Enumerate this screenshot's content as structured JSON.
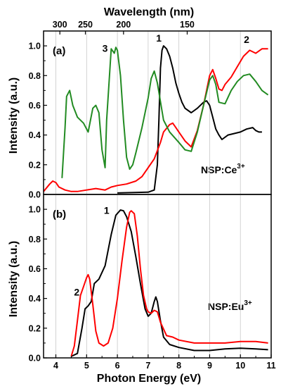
{
  "chart_data": [
    {
      "type": "line",
      "panel_label": "(a)",
      "annotation": "NSP:Ce",
      "annotation_sup": "3+",
      "top_axis": {
        "label": "Wavelength (nm)",
        "ticks": [
          {
            "label": "300",
            "energy": 4.13
          },
          {
            "label": "250",
            "energy": 4.96
          },
          {
            "label": "200",
            "energy": 6.2
          },
          {
            "label": "150",
            "energy": 8.27
          }
        ]
      },
      "ylabel": "Intensity (a.u.)",
      "ylim": [
        0,
        1.1
      ],
      "yticks": [
        "0.0",
        "0.2",
        "0.4",
        "0.6",
        "0.8",
        "1.0"
      ],
      "xlim": [
        3.6,
        11
      ],
      "grid_x": [
        4,
        5,
        6,
        7,
        8,
        9,
        10,
        11
      ],
      "series": [
        {
          "name": "1",
          "color": "#000000",
          "label_pos": [
            7.35,
            1.03
          ],
          "x": [
            6.0,
            7.0,
            7.2,
            7.3,
            7.35,
            7.4,
            7.45,
            7.5,
            7.6,
            7.7,
            7.8,
            7.9,
            8.0,
            8.1,
            8.2,
            8.4,
            8.6,
            8.8,
            8.9,
            9.0,
            9.1,
            9.2,
            9.3,
            9.4,
            9.6,
            9.8,
            10.0,
            10.2,
            10.4,
            10.5,
            10.6,
            10.7
          ],
          "y": [
            0.01,
            0.015,
            0.03,
            0.2,
            0.5,
            0.85,
            0.97,
            1.0,
            0.98,
            0.93,
            0.85,
            0.75,
            0.68,
            0.62,
            0.58,
            0.55,
            0.58,
            0.62,
            0.63,
            0.6,
            0.52,
            0.44,
            0.4,
            0.37,
            0.4,
            0.41,
            0.42,
            0.44,
            0.45,
            0.43,
            0.42,
            0.42
          ]
        },
        {
          "name": "2",
          "color": "#ff0000",
          "label_pos": [
            10.2,
            1.02
          ],
          "x": [
            3.6,
            3.8,
            3.9,
            4.0,
            4.1,
            4.3,
            4.5,
            4.7,
            5.0,
            5.3,
            5.6,
            5.8,
            6.0,
            6.3,
            6.6,
            6.8,
            7.0,
            7.2,
            7.4,
            7.5,
            7.7,
            7.8,
            7.9,
            8.0,
            8.2,
            8.4,
            8.6,
            8.8,
            9.0,
            9.1,
            9.2,
            9.3,
            9.4,
            9.5,
            9.7,
            9.9,
            10.1,
            10.3,
            10.5,
            10.7,
            10.9
          ],
          "y": [
            0.02,
            0.07,
            0.09,
            0.08,
            0.05,
            0.03,
            0.02,
            0.02,
            0.03,
            0.04,
            0.03,
            0.05,
            0.06,
            0.07,
            0.09,
            0.12,
            0.18,
            0.24,
            0.35,
            0.42,
            0.47,
            0.48,
            0.45,
            0.42,
            0.36,
            0.32,
            0.43,
            0.6,
            0.8,
            0.84,
            0.78,
            0.71,
            0.7,
            0.74,
            0.79,
            0.86,
            0.93,
            0.97,
            0.95,
            0.98,
            0.98
          ]
        },
        {
          "name": "3",
          "color": "#228b22",
          "label_pos": [
            5.6,
            0.96
          ],
          "x": [
            4.2,
            4.3,
            4.35,
            4.45,
            4.55,
            4.7,
            4.9,
            5.05,
            5.2,
            5.3,
            5.4,
            5.5,
            5.6,
            5.65,
            5.8,
            5.9,
            5.95,
            6.0,
            6.1,
            6.2,
            6.3,
            6.4,
            6.5,
            6.6,
            6.8,
            7.0,
            7.1,
            7.2,
            7.3,
            7.5,
            7.7,
            8.0,
            8.2,
            8.4,
            8.6,
            8.8,
            9.0,
            9.1,
            9.2,
            9.3,
            9.5,
            9.7,
            9.9,
            10.1,
            10.3,
            10.5,
            10.7,
            10.9
          ],
          "y": [
            0.11,
            0.45,
            0.66,
            0.7,
            0.6,
            0.52,
            0.48,
            0.42,
            0.58,
            0.6,
            0.55,
            0.3,
            0.18,
            0.5,
            0.98,
            0.95,
            0.99,
            0.97,
            0.8,
            0.5,
            0.25,
            0.17,
            0.2,
            0.28,
            0.45,
            0.65,
            0.78,
            0.83,
            0.75,
            0.5,
            0.42,
            0.35,
            0.3,
            0.29,
            0.42,
            0.6,
            0.77,
            0.8,
            0.74,
            0.62,
            0.61,
            0.7,
            0.76,
            0.8,
            0.81,
            0.76,
            0.7,
            0.67
          ]
        }
      ]
    },
    {
      "type": "line",
      "panel_label": "(b)",
      "annotation": "NSP:Eu",
      "annotation_sup": "3+",
      "xlabel": "Photon Energy (eV)",
      "xticks": [
        "4",
        "5",
        "6",
        "7",
        "8",
        "9",
        "10",
        "11"
      ],
      "xlim": [
        3.6,
        11
      ],
      "ylabel": "Intensity (a.u.)",
      "ylim": [
        0,
        1.1
      ],
      "yticks": [
        "0.0",
        "0.2",
        "0.4",
        "0.6",
        "0.8",
        "1.0"
      ],
      "grid_x": [
        4,
        5,
        6,
        7,
        8,
        9,
        10,
        11
      ],
      "series": [
        {
          "name": "1",
          "color": "#000000",
          "label_pos": [
            5.65,
            0.97
          ],
          "x": [
            4.5,
            4.7,
            4.85,
            4.95,
            5.05,
            5.15,
            5.25,
            5.4,
            5.6,
            5.8,
            5.95,
            6.1,
            6.2,
            6.3,
            6.45,
            6.6,
            6.75,
            6.9,
            7.0,
            7.1,
            7.2,
            7.25,
            7.3,
            7.4,
            7.5,
            7.7,
            8.0,
            8.5,
            9.0,
            9.5,
            10.0,
            10.5,
            10.9
          ],
          "y": [
            0.01,
            0.03,
            0.2,
            0.33,
            0.35,
            0.38,
            0.5,
            0.53,
            0.62,
            0.83,
            0.96,
            0.995,
            0.99,
            0.95,
            0.85,
            0.68,
            0.5,
            0.33,
            0.28,
            0.3,
            0.38,
            0.41,
            0.38,
            0.25,
            0.14,
            0.09,
            0.07,
            0.05,
            0.05,
            0.06,
            0.065,
            0.06,
            0.055
          ]
        },
        {
          "name": "2",
          "color": "#ff0000",
          "label_pos": [
            4.68,
            0.42
          ],
          "x": [
            4.5,
            4.6,
            4.7,
            4.8,
            4.9,
            5.0,
            5.05,
            5.1,
            5.2,
            5.3,
            5.4,
            5.55,
            5.7,
            5.85,
            6.0,
            6.15,
            6.3,
            6.4,
            6.45,
            6.55,
            6.65,
            6.75,
            6.85,
            6.95,
            7.0,
            7.1,
            7.2,
            7.3,
            7.4,
            7.6,
            7.8,
            8.0,
            8.5,
            9.0,
            9.5,
            10.0,
            10.5,
            10.9
          ],
          "y": [
            0.01,
            0.08,
            0.25,
            0.42,
            0.48,
            0.54,
            0.56,
            0.53,
            0.36,
            0.18,
            0.1,
            0.08,
            0.1,
            0.2,
            0.4,
            0.65,
            0.88,
            0.98,
            0.99,
            0.97,
            0.82,
            0.6,
            0.42,
            0.33,
            0.31,
            0.3,
            0.32,
            0.31,
            0.24,
            0.15,
            0.14,
            0.12,
            0.1,
            0.1,
            0.1,
            0.11,
            0.11,
            0.1
          ]
        }
      ]
    }
  ]
}
